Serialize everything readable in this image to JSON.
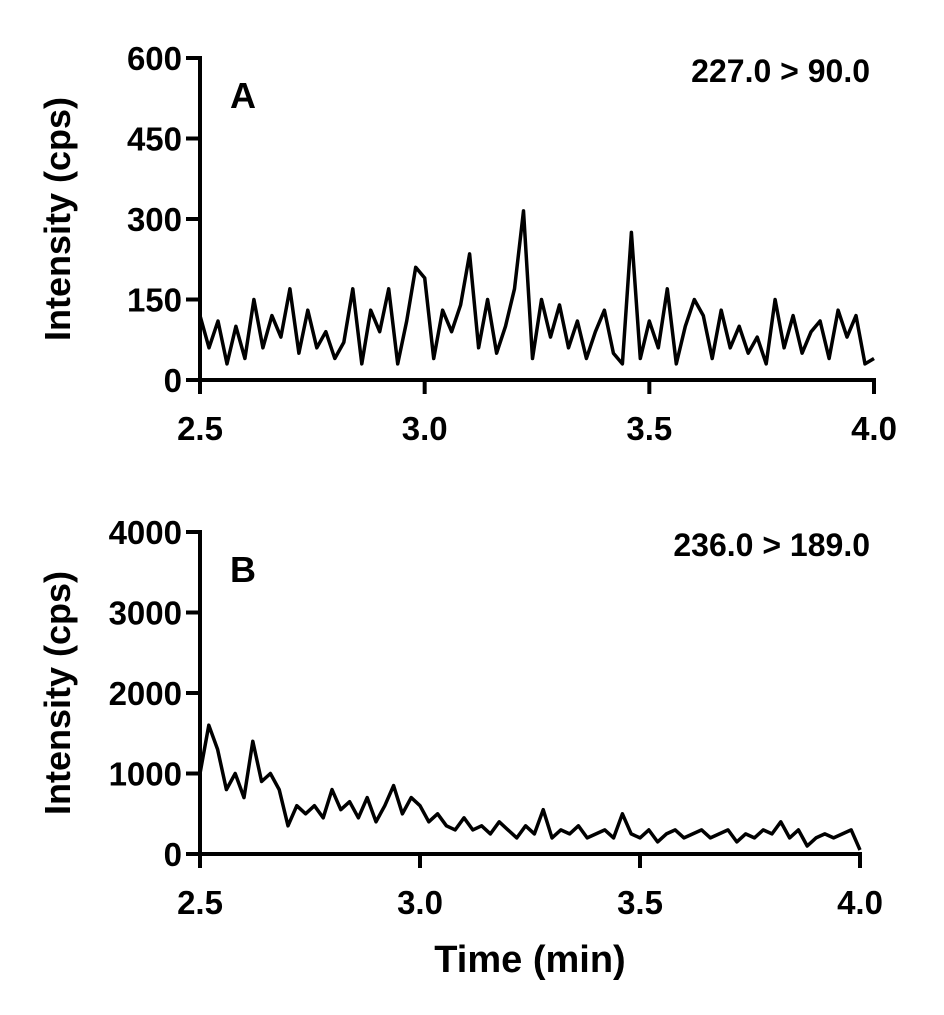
{
  "chart_data": [
    {
      "type": "line",
      "panel_label": "A",
      "annotation": "227.0 > 90.0",
      "y_label": "Intensity (cps)",
      "color": "#000000",
      "xlim": [
        2.5,
        4.0
      ],
      "xticks": [
        2.5,
        {
          "value": 3,
          "label": "3.0"
        },
        3.5,
        {
          "value": 4,
          "label": "4.0"
        }
      ],
      "ylim": [
        0,
        600
      ],
      "yticks": [
        0,
        150,
        300,
        450,
        600
      ],
      "x": [
        2.5,
        2.52,
        2.54,
        2.56,
        2.58,
        2.6,
        2.62,
        2.64,
        2.66,
        2.68,
        2.7,
        2.72,
        2.74,
        2.76,
        2.78,
        2.8,
        2.82,
        2.84,
        2.86,
        2.88,
        2.9,
        2.92,
        2.94,
        2.96,
        2.98,
        3.0,
        3.02,
        3.04,
        3.06,
        3.08,
        3.1,
        3.12,
        3.14,
        3.16,
        3.18,
        3.2,
        3.22,
        3.24,
        3.26,
        3.28,
        3.3,
        3.32,
        3.34,
        3.36,
        3.38,
        3.4,
        3.42,
        3.44,
        3.46,
        3.48,
        3.5,
        3.52,
        3.54,
        3.56,
        3.58,
        3.6,
        3.62,
        3.64,
        3.66,
        3.68,
        3.7,
        3.72,
        3.74,
        3.76,
        3.78,
        3.8,
        3.82,
        3.84,
        3.86,
        3.88,
        3.9,
        3.92,
        3.94,
        3.96,
        3.98,
        4.0
      ],
      "series": [
        {
          "name": "227.0 > 90.0",
          "values": [
            120,
            60,
            110,
            30,
            100,
            40,
            150,
            60,
            120,
            80,
            170,
            50,
            130,
            60,
            90,
            40,
            70,
            170,
            30,
            130,
            90,
            170,
            30,
            110,
            210,
            190,
            40,
            130,
            90,
            140,
            235,
            60,
            150,
            50,
            100,
            170,
            315,
            40,
            150,
            80,
            140,
            60,
            110,
            40,
            90,
            130,
            50,
            30,
            275,
            40,
            110,
            60,
            170,
            30,
            100,
            150,
            120,
            40,
            130,
            60,
            100,
            50,
            80,
            30,
            150,
            60,
            120,
            50,
            90,
            110,
            40,
            130,
            80,
            120,
            30,
            40
          ]
        }
      ]
    },
    {
      "type": "line",
      "panel_label": "B",
      "annotation": "236.0 > 189.0",
      "y_label": "Intensity (cps)",
      "x_label": "Time (min)",
      "color": "#000000",
      "xlim": [
        2.5,
        4.0
      ],
      "xticks": [
        2.5,
        {
          "value": 3,
          "label": "3.0"
        },
        3.5,
        {
          "value": 4,
          "label": "4.0"
        }
      ],
      "ylim": [
        0,
        4000
      ],
      "yticks": [
        0,
        1000,
        2000,
        3000,
        4000
      ],
      "x": [
        2.5,
        2.52,
        2.54,
        2.56,
        2.58,
        2.6,
        2.62,
        2.64,
        2.66,
        2.68,
        2.7,
        2.72,
        2.74,
        2.76,
        2.78,
        2.8,
        2.82,
        2.84,
        2.86,
        2.88,
        2.9,
        2.92,
        2.94,
        2.96,
        2.98,
        3.0,
        3.02,
        3.04,
        3.06,
        3.08,
        3.1,
        3.12,
        3.14,
        3.16,
        3.18,
        3.2,
        3.22,
        3.24,
        3.26,
        3.28,
        3.3,
        3.32,
        3.34,
        3.36,
        3.38,
        3.4,
        3.42,
        3.44,
        3.46,
        3.48,
        3.5,
        3.52,
        3.54,
        3.56,
        3.58,
        3.6,
        3.62,
        3.64,
        3.66,
        3.68,
        3.7,
        3.72,
        3.74,
        3.76,
        3.78,
        3.8,
        3.82,
        3.84,
        3.86,
        3.88,
        3.9,
        3.92,
        3.94,
        3.96,
        3.98,
        4.0
      ],
      "series": [
        {
          "name": "236.0 > 189.0",
          "values": [
            1000,
            1600,
            1300,
            800,
            1000,
            700,
            1400,
            900,
            1000,
            800,
            350,
            600,
            500,
            600,
            450,
            800,
            550,
            650,
            450,
            700,
            400,
            600,
            850,
            500,
            700,
            600,
            400,
            500,
            350,
            300,
            450,
            300,
            350,
            250,
            400,
            300,
            200,
            350,
            250,
            550,
            200,
            300,
            250,
            350,
            200,
            250,
            300,
            200,
            500,
            250,
            200,
            300,
            150,
            250,
            300,
            200,
            250,
            300,
            200,
            250,
            300,
            150,
            250,
            200,
            300,
            250,
            400,
            200,
            300,
            100,
            200,
            250,
            200,
            250,
            300,
            50
          ]
        }
      ]
    }
  ]
}
